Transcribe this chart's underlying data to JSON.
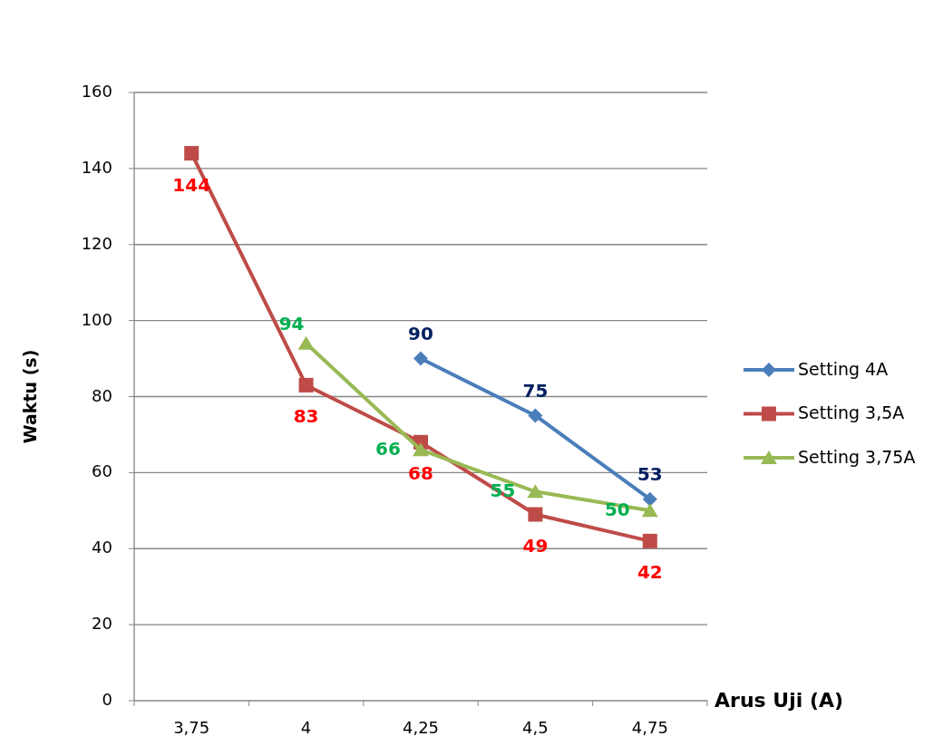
{
  "chart_data": {
    "type": "line",
    "xlabel": "Arus Uji (A)",
    "ylabel": "Waktu (s)",
    "categories": [
      "3,75",
      "4",
      "4,25",
      "4,5",
      "4,75"
    ],
    "ylim": [
      0,
      160
    ],
    "yticks": [
      0,
      20,
      40,
      60,
      80,
      100,
      120,
      140,
      160
    ],
    "grid": "y",
    "legend": "right",
    "data_labels": true,
    "series": [
      {
        "name": "Setting 4A",
        "color": "#4a7ebb",
        "marker": "diamond",
        "values": [
          null,
          null,
          90,
          75,
          53
        ]
      },
      {
        "name": "Setting 3,5A",
        "color": "#be4b48",
        "marker": "square",
        "values": [
          144,
          83,
          68,
          49,
          42
        ]
      },
      {
        "name": "Setting 3,75A",
        "color": "#98b954",
        "marker": "triangle",
        "values": [
          null,
          94,
          66,
          55,
          50
        ]
      }
    ]
  }
}
